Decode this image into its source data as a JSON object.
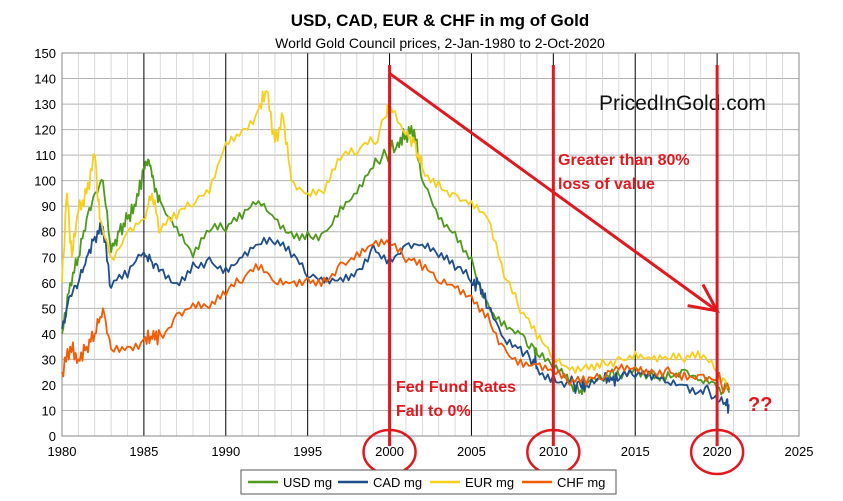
{
  "chart_data": {
    "type": "line",
    "title": "USD, CAD, EUR & CHF in mg of Gold",
    "subtitle": "World Gold Council prices, 2-Jan-1980 to 2-Oct-2020",
    "xlabel": "",
    "ylabel": "",
    "xlim": [
      1980,
      2025
    ],
    "ylim": [
      0,
      150
    ],
    "x_ticks": [
      1980,
      1985,
      1990,
      1995,
      2000,
      2005,
      2010,
      2015,
      2020,
      2025
    ],
    "y_ticks": [
      0,
      10,
      20,
      30,
      40,
      50,
      60,
      70,
      80,
      90,
      100,
      110,
      120,
      130,
      140,
      150
    ],
    "grid": true,
    "legend_position": "bottom",
    "series": [
      {
        "name": "USD mg",
        "color": "#4e9a1b",
        "x": [
          1980.0,
          1980.5,
          1981.0,
          1981.5,
          1982.0,
          1982.5,
          1983.0,
          1983.5,
          1984.0,
          1984.5,
          1985.0,
          1985.3,
          1985.6,
          1986.0,
          1987.0,
          1988.0,
          1989.0,
          1990.0,
          1991.0,
          1992.0,
          1993.0,
          1994.0,
          1995.0,
          1996.0,
          1997.0,
          1998.0,
          1999.0,
          1999.8,
          2000.5,
          2001.0,
          2001.5,
          2002.0,
          2003.0,
          2004.0,
          2005.0,
          2006.0,
          2007.0,
          2008.0,
          2008.8,
          2009.0,
          2010.0,
          2011.0,
          2011.7,
          2012.0,
          2013.0,
          2013.5,
          2014.0,
          2015.0,
          2016.0,
          2017.0,
          2018.0,
          2019.0,
          2020.0,
          2020.75
        ],
        "y": [
          40,
          60,
          70,
          85,
          95,
          100,
          72,
          80,
          85,
          90,
          105,
          108,
          100,
          92,
          82,
          70,
          80,
          80,
          85,
          92,
          85,
          80,
          80,
          80,
          90,
          95,
          105,
          110,
          115,
          118,
          120,
          100,
          85,
          80,
          70,
          52,
          45,
          40,
          35,
          32,
          26,
          20,
          18,
          20,
          22,
          25,
          24,
          27,
          25,
          25,
          26,
          22,
          19,
          17
        ]
      },
      {
        "name": "CAD mg",
        "color": "#1f4e8c",
        "x": [
          1980.0,
          1980.5,
          1981.0,
          1981.5,
          1982.0,
          1982.5,
          1983.0,
          1984.0,
          1985.0,
          1985.5,
          1986.0,
          1987.0,
          1988.0,
          1989.0,
          1990.0,
          1991.0,
          1992.0,
          1993.0,
          1994.0,
          1995.0,
          1996.0,
          1997.0,
          1998.0,
          1999.0,
          2000.0,
          2001.0,
          2002.0,
          2003.0,
          2004.0,
          2005.0,
          2005.5,
          2006.0,
          2007.0,
          2008.0,
          2008.8,
          2009.0,
          2010.0,
          2011.0,
          2011.7,
          2012.0,
          2013.0,
          2013.5,
          2014.0,
          2015.0,
          2016.0,
          2017.0,
          2018.0,
          2019.0,
          2019.8,
          2020.5,
          2020.75
        ],
        "y": [
          42,
          55,
          60,
          70,
          78,
          82,
          58,
          62,
          72,
          68,
          65,
          60,
          68,
          70,
          66,
          70,
          75,
          75,
          70,
          62,
          60,
          62,
          65,
          75,
          70,
          75,
          75,
          70,
          65,
          60,
          60,
          50,
          38,
          35,
          30,
          27,
          24,
          21,
          19,
          20,
          22,
          23,
          22,
          23,
          22,
          21,
          20,
          18,
          15,
          13,
          12
        ]
      },
      {
        "name": "EUR mg",
        "color": "#f7cf1d",
        "x": [
          1980.0,
          1980.3,
          1980.6,
          1981.0,
          1981.5,
          1982.0,
          1982.3,
          1983.0,
          1984.0,
          1985.0,
          1985.5,
          1986.0,
          1987.0,
          1988.0,
          1989.0,
          1990.0,
          1991.0,
          1992.0,
          1992.5,
          1993.0,
          1993.5,
          1994.0,
          1995.0,
          1996.0,
          1997.0,
          1998.0,
          1999.0,
          1999.8,
          2000.0,
          2001.0,
          2001.5,
          2002.0,
          2003.0,
          2004.0,
          2005.0,
          2006.0,
          2007.0,
          2008.0,
          2009.0,
          2010.0,
          2011.0,
          2012.0,
          2013.0,
          2014.0,
          2015.0,
          2016.0,
          2017.0,
          2018.0,
          2019.0,
          2020.0,
          2020.75
        ],
        "y": [
          60,
          95,
          70,
          88,
          95,
          110,
          85,
          70,
          80,
          85,
          95,
          80,
          85,
          90,
          95,
          115,
          120,
          128,
          135,
          115,
          125,
          100,
          95,
          95,
          108,
          110,
          115,
          125,
          130,
          118,
          115,
          105,
          100,
          95,
          92,
          85,
          62,
          48,
          38,
          30,
          26,
          28,
          30,
          31,
          33,
          30,
          30,
          29,
          30,
          25,
          19
        ]
      },
      {
        "name": "CHF mg",
        "color": "#f25c05",
        "x": [
          1980.0,
          1980.5,
          1981.0,
          1981.5,
          1982.0,
          1982.5,
          1983.0,
          1984.0,
          1985.0,
          1985.5,
          1986.0,
          1987.0,
          1988.0,
          1989.0,
          1990.0,
          1991.0,
          1992.0,
          1993.0,
          1994.0,
          1995.0,
          1996.0,
          1997.0,
          1998.0,
          1999.0,
          2000.0,
          2001.0,
          2002.0,
          2003.0,
          2004.0,
          2005.0,
          2006.0,
          2007.0,
          2008.0,
          2009.0,
          2010.0,
          2011.0,
          2012.0,
          2013.0,
          2014.0,
          2015.0,
          2016.0,
          2017.0,
          2018.0,
          2019.0,
          2020.0,
          2020.75
        ],
        "y": [
          25,
          35,
          30,
          35,
          40,
          50,
          34,
          35,
          38,
          38,
          40,
          48,
          52,
          50,
          55,
          60,
          65,
          60,
          60,
          62,
          62,
          68,
          72,
          75,
          75,
          68,
          65,
          60,
          58,
          55,
          48,
          35,
          30,
          28,
          25,
          20,
          20,
          22,
          26,
          27,
          26,
          27,
          25,
          24,
          22,
          18
        ]
      }
    ],
    "annotations": {
      "logo": "PricedInGold.com",
      "arrow_text_line1": "Greater than 80%",
      "arrow_text_line2": "loss of value",
      "fed_line1": "Fed Fund Rates",
      "fed_line2": "Fall to 0%",
      "question": "??",
      "vertical_lines": [
        2000,
        2010,
        2020
      ],
      "circled_years": [
        2000,
        2010,
        2020
      ],
      "arrow_start": {
        "x": 2000,
        "y": 142
      },
      "arrow_end": {
        "x": 2020,
        "y": 49
      },
      "accent_color": "#e0191f"
    }
  }
}
